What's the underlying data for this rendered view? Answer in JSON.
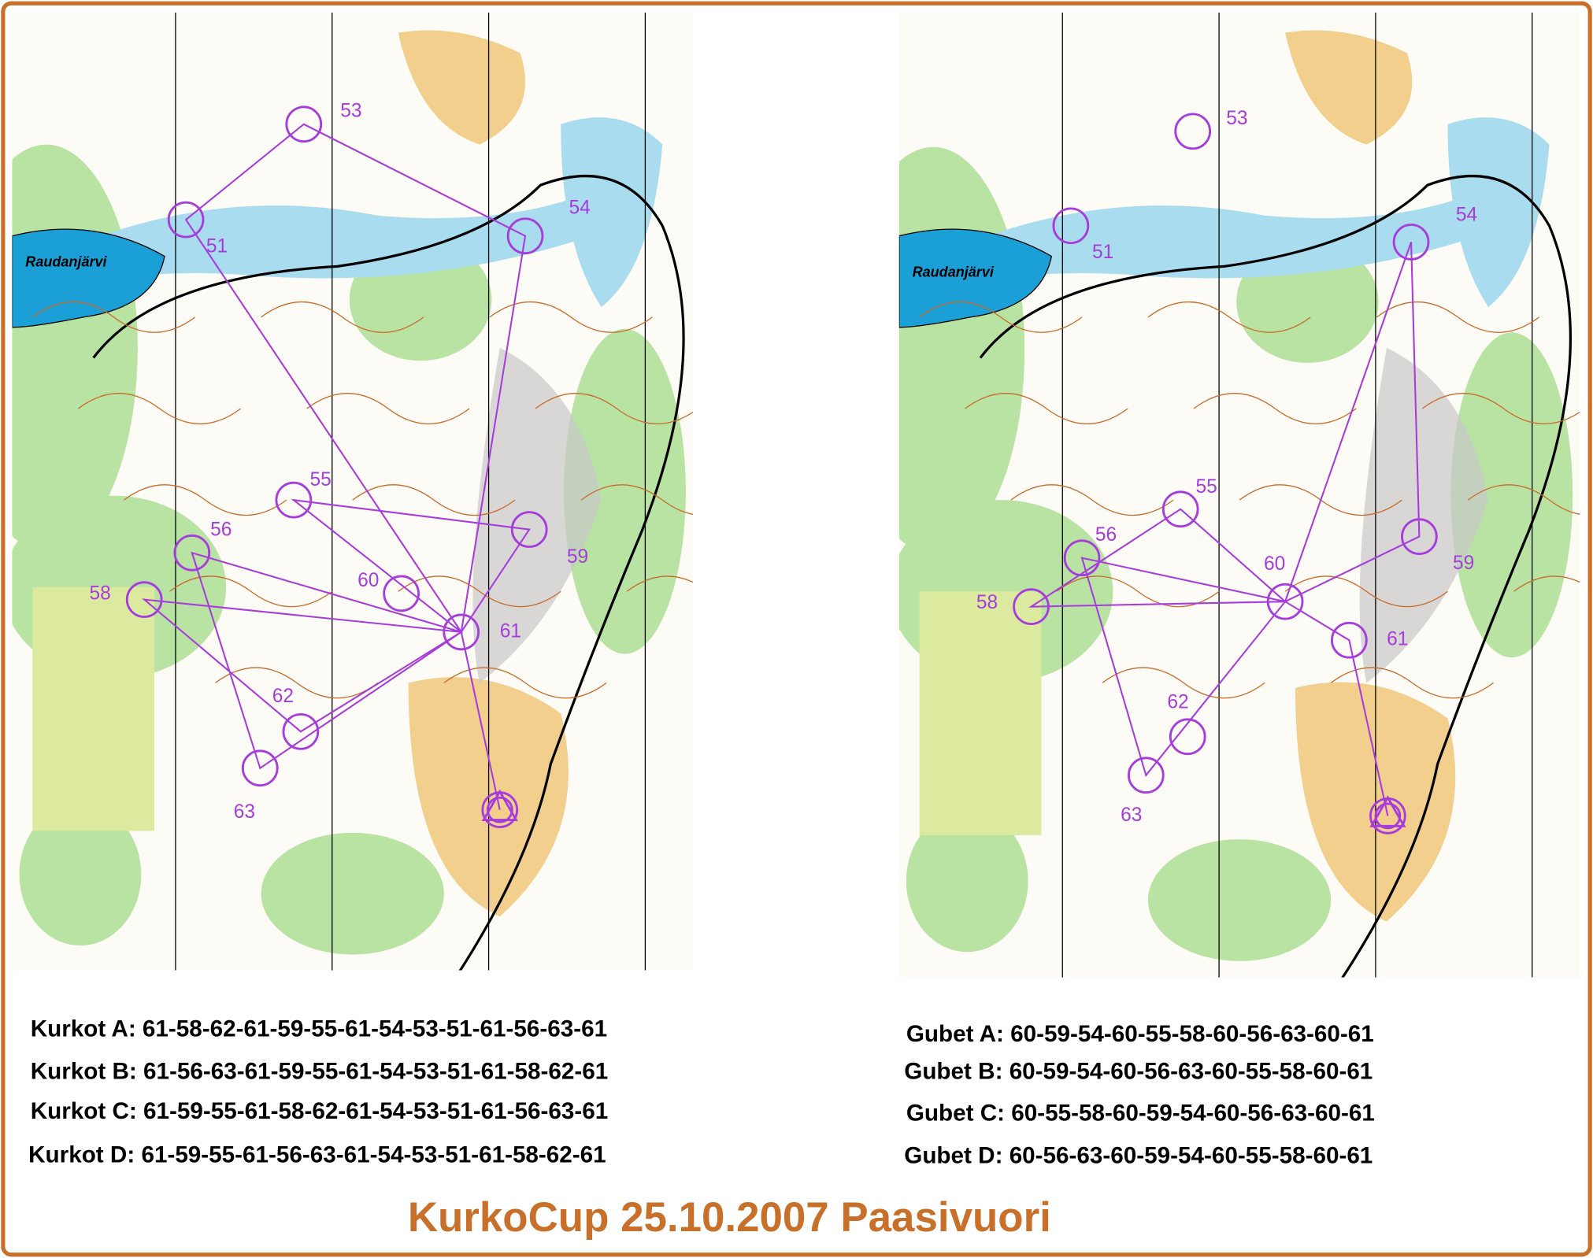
{
  "maps": [
    {
      "lake": "Raudanjärvi",
      "controls": [
        "53",
        "54",
        "51",
        "55",
        "56",
        "58",
        "60",
        "59",
        "61",
        "62",
        "63"
      ]
    },
    {
      "lake": "Raudanjärvi",
      "controls": [
        "53",
        "54",
        "51",
        "55",
        "56",
        "58",
        "60",
        "59",
        "61",
        "62",
        "63"
      ]
    }
  ],
  "courses": {
    "left": [
      "Kurkot A: 61-58-62-61-59-55-61-54-53-51-61-56-63-61",
      "Kurkot B: 61-56-63-61-59-55-61-54-53-51-61-58-62-61",
      "Kurkot C: 61-59-55-61-58-62-61-54-53-51-61-56-63-61",
      "Kurkot D: 61-59-55-61-56-63-61-54-53-51-61-58-62-61"
    ],
    "right": [
      "Gubet A: 60-59-54-60-55-58-60-56-63-60-61",
      "Gubet B: 60-59-54-60-56-63-60-55-58-60-61",
      "Gubet C: 60-55-58-60-59-54-60-56-63-60-61",
      "Gubet D: 60-56-63-60-59-54-60-55-58-60-61"
    ]
  },
  "title": "KurkoCup 25.10.2007 Paasivuori"
}
